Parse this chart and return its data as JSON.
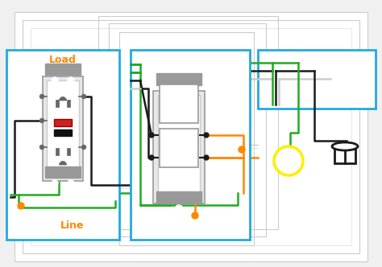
{
  "bg": "#f0f0f0",
  "white": "#ffffff",
  "black": "#1a1a1a",
  "green": "#22aa22",
  "orange": "#ff8800",
  "blue": "#22aadd",
  "gray": "#999999",
  "lgray": "#cccccc",
  "vlgray": "#e8e8e8",
  "red": "#cc2222",
  "yellow": "#ffee00",
  "dgray": "#666666",
  "load_text": "Load",
  "line_text": "Line"
}
